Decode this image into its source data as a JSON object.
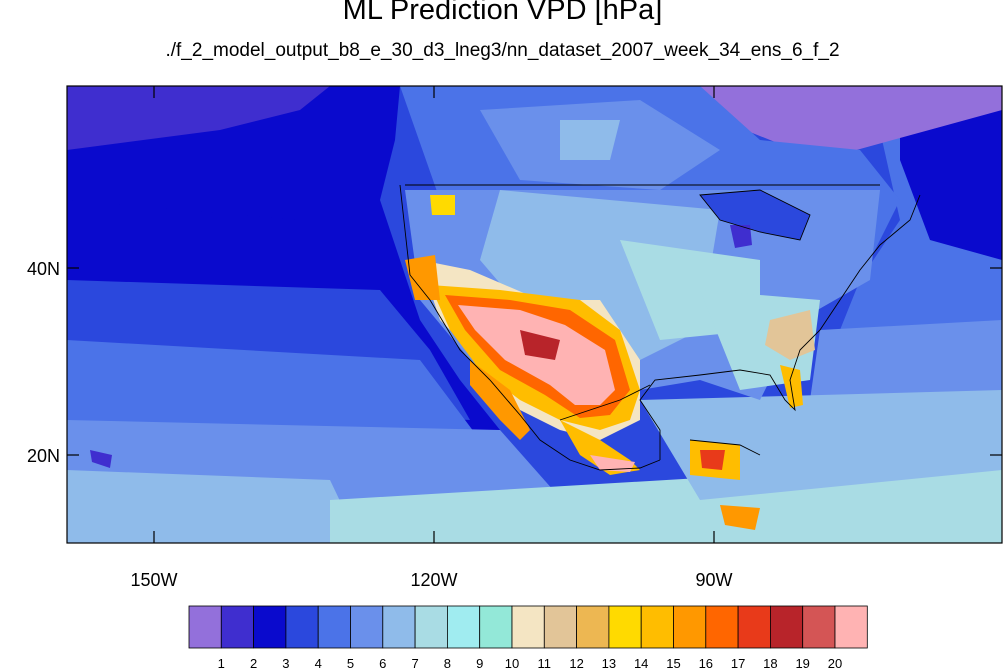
{
  "title": "ML Prediction VPD [hPa]",
  "subtitle": "./f_2_model_output_b8_e_30_d3_lneg3/nn_dataset_2007_week_34_ens_6_f_2",
  "lat_labels": [
    "40N",
    "20N"
  ],
  "lon_labels": [
    "150W",
    "120W",
    "90W"
  ],
  "colorbar": {
    "labels": [
      "1",
      "2",
      "3",
      "4",
      "5",
      "6",
      "7",
      "8",
      "9",
      "10",
      "11",
      "12",
      "13",
      "14",
      "15",
      "16",
      "17",
      "18",
      "19",
      "20"
    ],
    "colors": [
      "#9370DB",
      "#3F2ECF",
      "#0A0ACD",
      "#2B48DD",
      "#4B73E8",
      "#6A90EB",
      "#8FBBEA",
      "#A9DCE4",
      "#A0ECF0",
      "#93E8D8",
      "#F4E5C3",
      "#E2C598",
      "#EDB752",
      "#FFDA00",
      "#FFBD00",
      "#FF9800",
      "#FF6600",
      "#E83A1A",
      "#B8242A",
      "#D45555",
      "#FFB3B3"
    ]
  }
}
